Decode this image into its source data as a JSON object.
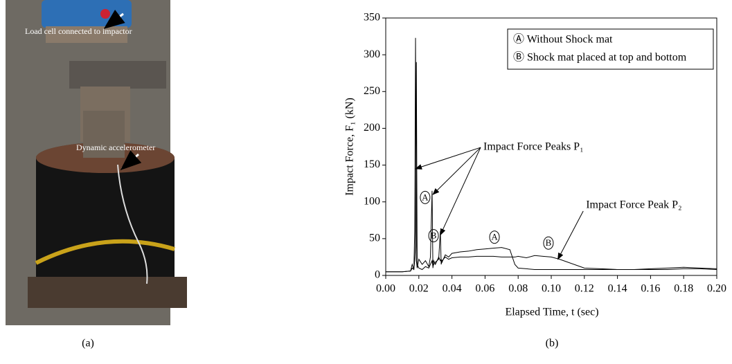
{
  "photo": {
    "labels": [
      "Load cell connected to impactor",
      "Dynamic accelerometer"
    ],
    "caption": "(a)"
  },
  "chart_data": {
    "type": "line",
    "caption": "(b)",
    "xlabel": "Elapsed Time, t (sec)",
    "ylabel": "Impact Force, F₁ (kN)",
    "xlim": [
      0,
      0.2
    ],
    "ylim": [
      0,
      350
    ],
    "xticks": [
      {
        "value": 0,
        "label": "0.00"
      },
      {
        "value": 0.02,
        "label": "0.02"
      },
      {
        "value": 0.04,
        "label": "0.04"
      },
      {
        "value": 0.06,
        "label": "0.06"
      },
      {
        "value": 0.08,
        "label": "0.08"
      },
      {
        "value": 0.1,
        "label": "0.10"
      },
      {
        "value": 0.12,
        "label": "0.12"
      },
      {
        "value": 0.14,
        "label": "0.14"
      },
      {
        "value": 0.16,
        "label": "0.16"
      },
      {
        "value": 0.18,
        "label": "0.18"
      },
      {
        "value": 0.2,
        "label": "0.20"
      }
    ],
    "yticks": [
      0,
      50,
      100,
      150,
      200,
      250,
      300,
      350
    ],
    "legend": "upper right",
    "x": [
      0,
      0.01,
      0.015,
      0.016,
      0.017,
      0.0175,
      0.018,
      0.0185,
      0.019,
      0.02,
      0.022,
      0.024,
      0.026,
      0.027,
      0.028,
      0.0285,
      0.029,
      0.03,
      0.032,
      0.033,
      0.0335,
      0.034,
      0.036,
      0.038,
      0.04,
      0.045,
      0.05,
      0.055,
      0.06,
      0.065,
      0.07,
      0.075,
      0.078,
      0.08,
      0.085,
      0.09,
      0.095,
      0.1,
      0.105,
      0.11,
      0.115,
      0.12,
      0.13,
      0.14,
      0.15,
      0.16,
      0.17,
      0.18,
      0.19,
      0.2
    ],
    "series": [
      {
        "name": "Ⓐ Without Shock mat",
        "color": "#000000",
        "values": [
          5,
          5,
          6,
          15,
          8,
          60,
          323,
          20,
          10,
          22,
          15,
          20,
          12,
          25,
          115,
          10,
          20,
          15,
          25,
          20,
          22,
          18,
          28,
          25,
          30,
          32,
          33,
          35,
          36,
          37,
          38,
          35,
          15,
          10,
          9,
          8,
          8,
          8,
          8,
          8,
          8,
          8,
          8,
          8,
          8,
          9,
          10,
          11,
          10,
          9
        ]
      },
      {
        "name": "Ⓑ Shock mat placed at top and bottom",
        "color": "#000000",
        "values": [
          5,
          5,
          6,
          10,
          8,
          20,
          40,
          290,
          15,
          10,
          8,
          12,
          10,
          15,
          20,
          12,
          15,
          18,
          22,
          60,
          15,
          20,
          25,
          22,
          24,
          25,
          25,
          26,
          26,
          26,
          25,
          25,
          25,
          26,
          24,
          27,
          26,
          25,
          22,
          18,
          14,
          10,
          9,
          8,
          8,
          8,
          8,
          9,
          9,
          8
        ]
      }
    ],
    "annotations": [
      {
        "text": "Impact Force Peaks P₁",
        "x": 0.059,
        "y": 174,
        "targets": [
          {
            "x": 0.018,
            "y": 145
          },
          {
            "x": 0.0285,
            "y": 110
          },
          {
            "x": 0.033,
            "y": 55
          }
        ]
      },
      {
        "text": "Impact Force Peak P₂",
        "x": 0.121,
        "y": 95,
        "targets": [
          {
            "x": 0.104,
            "y": 22
          }
        ]
      }
    ],
    "markers": [
      {
        "text": "A",
        "x": 0.0238,
        "y": 106
      },
      {
        "text": "B",
        "x": 0.0289,
        "y": 54
      },
      {
        "text": "A",
        "x": 0.0657,
        "y": 52
      },
      {
        "text": "B",
        "x": 0.0983,
        "y": 44
      }
    ]
  }
}
